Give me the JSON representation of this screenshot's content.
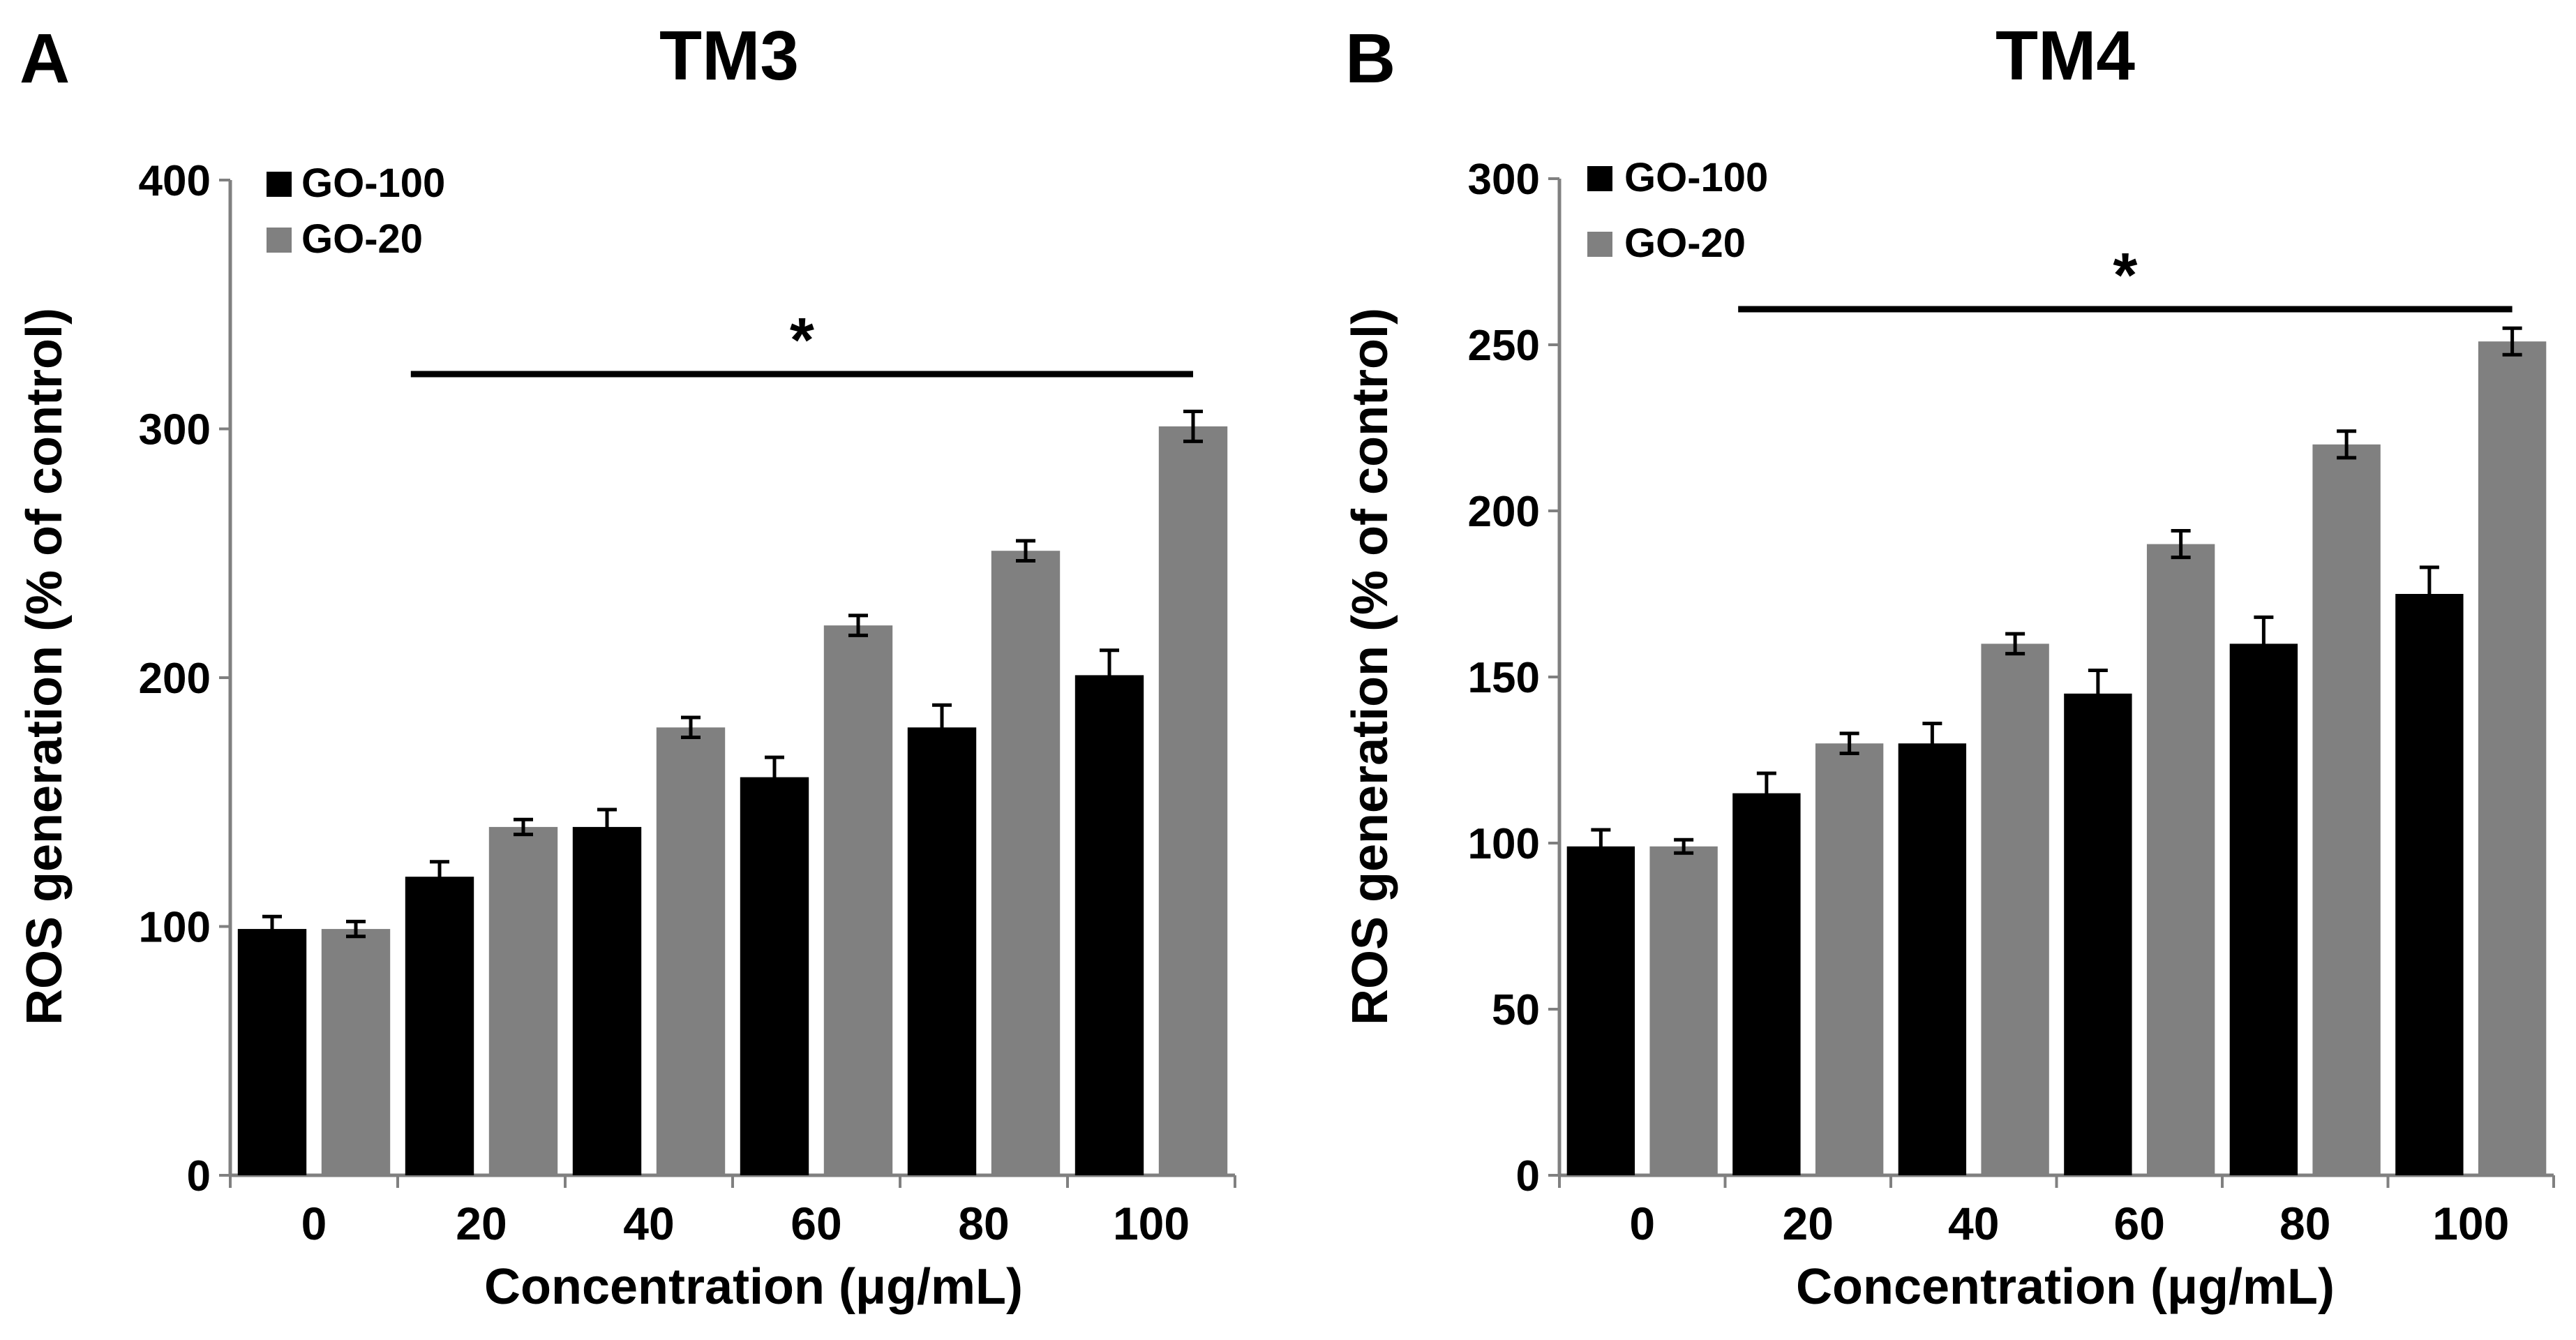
{
  "colors": {
    "series_a": "#000000",
    "series_b": "#808080",
    "axis": "#808080",
    "text": "#000000"
  },
  "chart_data": [
    {
      "panel_label": "A",
      "type": "bar",
      "title": "TM3",
      "xlabel": "Concentration (μg/mL)",
      "ylabel": "ROS generation (% of control)",
      "categories": [
        "0",
        "20",
        "40",
        "60",
        "80",
        "100"
      ],
      "ylim": [
        0,
        400
      ],
      "yticks": [
        0,
        100,
        200,
        300,
        400
      ],
      "legend_position": "top-left",
      "series": [
        {
          "name": "GO-100",
          "values": [
            99,
            120,
            140,
            160,
            180,
            201
          ],
          "errors": [
            5,
            6,
            7,
            8,
            9,
            10
          ]
        },
        {
          "name": "GO-20",
          "values": [
            99,
            140,
            180,
            221,
            251,
            301
          ],
          "errors": [
            3,
            3,
            4,
            4,
            4,
            6
          ]
        }
      ],
      "significance": {
        "label": "*",
        "from_category": "20",
        "to_category": "100"
      }
    },
    {
      "panel_label": "B",
      "type": "bar",
      "title": "TM4",
      "xlabel": "Concentration (μg/mL)",
      "ylabel": "ROS generation (% of control)",
      "categories": [
        "0",
        "20",
        "40",
        "60",
        "80",
        "100"
      ],
      "ylim": [
        0,
        300
      ],
      "yticks": [
        0,
        50,
        100,
        150,
        200,
        250,
        300
      ],
      "legend_position": "top-left",
      "series": [
        {
          "name": "GO-100",
          "values": [
            99,
            115,
            130,
            145,
            160,
            175
          ],
          "errors": [
            5,
            6,
            6,
            7,
            8,
            8
          ]
        },
        {
          "name": "GO-20",
          "values": [
            99,
            130,
            160,
            190,
            220,
            251
          ],
          "errors": [
            2,
            3,
            3,
            4,
            4,
            4
          ]
        }
      ],
      "significance": {
        "label": "*",
        "from_category": "20",
        "to_category": "100"
      }
    }
  ]
}
